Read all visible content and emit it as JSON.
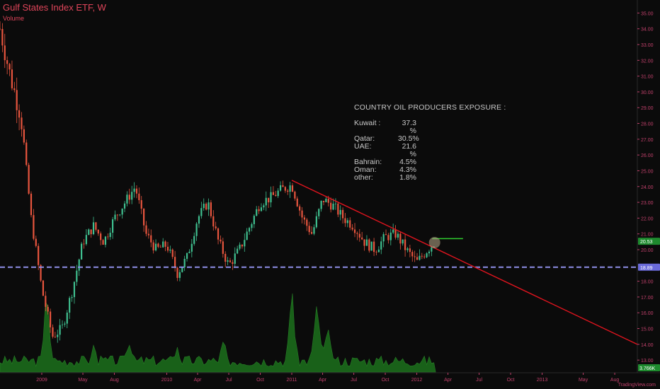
{
  "title": "Gulf States Index ETF, W",
  "volume_label": "Volume",
  "watermark": "TradingView.com",
  "colors": {
    "background": "#0b0b0b",
    "up": "#3fbf8f",
    "down": "#e8553e",
    "axis_text": "#c0406b",
    "trendline": "#e0141e",
    "support": "#8f8fe8",
    "resistance_mark": "#2fcc2f",
    "volume": "#1b6b1b",
    "last_price_bg": "#1e8a2e",
    "support_label_bg": "#6a6ad8"
  },
  "annotation": {
    "header": "COUNTRY OIL PRODUCERS EXPOSURE :",
    "rows": [
      {
        "country": "Kuwait :",
        "pct": "37.3 %"
      },
      {
        "country": "Qatar:",
        "pct": "30.5%"
      },
      {
        "country": "UAE:",
        "pct": "21.6 %"
      },
      {
        "country": "Bahrain:",
        "pct": "4.5%"
      },
      {
        "country": "Oman:",
        "pct": "4.3%"
      },
      {
        "country": "other:",
        "pct": "1.8%"
      }
    ]
  },
  "chart_data": {
    "type": "candlestick",
    "x_axis_labels": [
      "2009",
      "May",
      "Aug",
      "2010",
      "Apr",
      "Jul",
      "Oct",
      "2011",
      "Apr",
      "Jul",
      "Oct",
      "2012",
      "Apr",
      "Jul",
      "Oct",
      "2013",
      "May",
      "Aug"
    ],
    "x_axis_dates": [
      "2009-01-01",
      "2009-05-01",
      "2009-08-01",
      "2010-01-01",
      "2010-04-01",
      "2010-07-01",
      "2010-10-01",
      "2011-01-01",
      "2011-04-01",
      "2011-07-01",
      "2011-10-01",
      "2012-01-01",
      "2012-04-01",
      "2012-07-01",
      "2012-10-01",
      "2013-01-01",
      "2013-05-01",
      "2013-08-01"
    ],
    "x_range": [
      "2008-09-01",
      "2013-10-06"
    ],
    "y_ticks": [
      "35.00",
      "34.00",
      "33.00",
      "32.00",
      "31.00",
      "30.00",
      "29.00",
      "28.00",
      "27.00",
      "26.00",
      "25.00",
      "24.00",
      "23.00",
      "22.00",
      "21.00",
      "20.00",
      "18.00",
      "17.00",
      "16.00",
      "15.00",
      "14.00",
      "13.00"
    ],
    "y_range": [
      12.2,
      35.6
    ],
    "last_price": "20.53",
    "support_level": "18.89",
    "volume_last": "3.766K",
    "weekly_closes": [
      {
        "date": "2008-09-01",
        "close": 34.0
      },
      {
        "date": "2008-10-01",
        "close": 31.0
      },
      {
        "date": "2008-11-01",
        "close": 28.5
      },
      {
        "date": "2008-12-01",
        "close": 22.0
      },
      {
        "date": "2009-01-01",
        "close": 17.5
      },
      {
        "date": "2009-02-01",
        "close": 14.5
      },
      {
        "date": "2009-03-01",
        "close": 15.0
      },
      {
        "date": "2009-04-01",
        "close": 17.5
      },
      {
        "date": "2009-05-01",
        "close": 20.5
      },
      {
        "date": "2009-06-01",
        "close": 21.5
      },
      {
        "date": "2009-07-01",
        "close": 20.5
      },
      {
        "date": "2009-08-01",
        "close": 22.0
      },
      {
        "date": "2009-09-01",
        "close": 23.0
      },
      {
        "date": "2009-10-01",
        "close": 24.0
      },
      {
        "date": "2009-11-01",
        "close": 21.0
      },
      {
        "date": "2009-12-01",
        "close": 20.0
      },
      {
        "date": "2010-01-01",
        "close": 20.3
      },
      {
        "date": "2010-02-01",
        "close": 18.5
      },
      {
        "date": "2010-03-01",
        "close": 19.5
      },
      {
        "date": "2010-04-01",
        "close": 22.0
      },
      {
        "date": "2010-05-01",
        "close": 23.0
      },
      {
        "date": "2010-06-01",
        "close": 20.5
      },
      {
        "date": "2010-07-01",
        "close": 19.0
      },
      {
        "date": "2010-08-01",
        "close": 20.0
      },
      {
        "date": "2010-09-01",
        "close": 21.5
      },
      {
        "date": "2010-10-01",
        "close": 23.0
      },
      {
        "date": "2010-11-01",
        "close": 23.3
      },
      {
        "date": "2010-12-01",
        "close": 23.8
      },
      {
        "date": "2011-01-01",
        "close": 24.1
      },
      {
        "date": "2011-02-01",
        "close": 22.0
      },
      {
        "date": "2011-03-01",
        "close": 21.0
      },
      {
        "date": "2011-04-01",
        "close": 23.2
      },
      {
        "date": "2011-05-01",
        "close": 22.8
      },
      {
        "date": "2011-06-01",
        "close": 22.0
      },
      {
        "date": "2011-07-01",
        "close": 21.5
      },
      {
        "date": "2011-08-01",
        "close": 20.5
      },
      {
        "date": "2011-09-01",
        "close": 20.0
      },
      {
        "date": "2011-10-01",
        "close": 20.8
      },
      {
        "date": "2011-11-01",
        "close": 21.0
      },
      {
        "date": "2011-12-01",
        "close": 20.0
      },
      {
        "date": "2012-01-01",
        "close": 19.2
      },
      {
        "date": "2012-02-01",
        "close": 20.0
      },
      {
        "date": "2012-02-25",
        "close": 20.53
      }
    ],
    "trendline": [
      {
        "date": "2011-01-01",
        "value": 24.4
      },
      {
        "date": "2013-10-06",
        "value": 14.0
      }
    ],
    "support_line": {
      "value": 18.89
    },
    "resistance_segment": {
      "from": "2012-02-15",
      "to": "2012-05-15",
      "value": 20.7
    },
    "volume_peaks": [
      {
        "date": "2009-01-15",
        "value": 0.95
      },
      {
        "date": "2009-06-01",
        "value": 0.35
      },
      {
        "date": "2009-09-15",
        "value": 0.45
      },
      {
        "date": "2010-02-01",
        "value": 0.3
      },
      {
        "date": "2010-06-15",
        "value": 0.4
      },
      {
        "date": "2011-01-01",
        "value": 1.0
      },
      {
        "date": "2011-03-15",
        "value": 0.85
      },
      {
        "date": "2011-04-15",
        "value": 0.55
      }
    ]
  }
}
